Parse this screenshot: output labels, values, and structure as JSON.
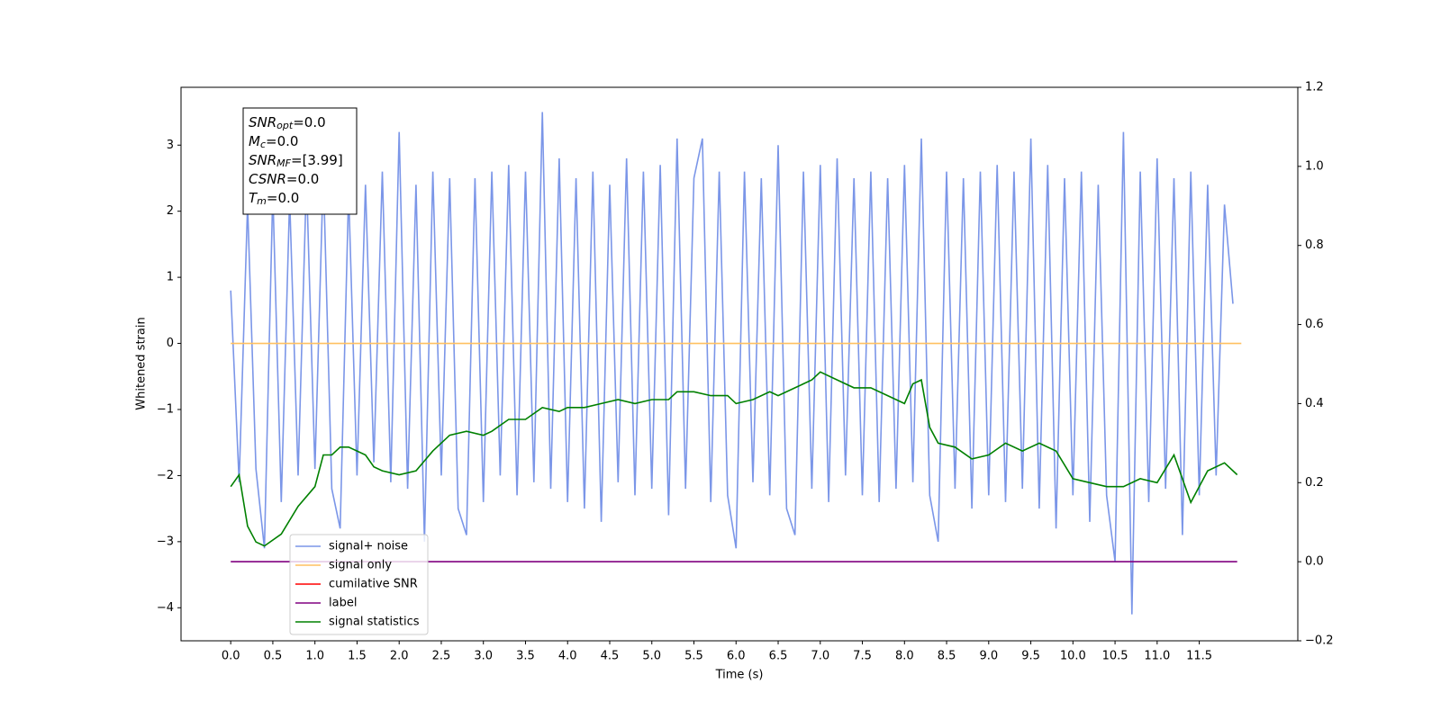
{
  "chart_data": {
    "type": "line",
    "xlabel": "Time (s)",
    "ylabel": "Whitened strain",
    "xlim": [
      -0.59,
      12.67
    ],
    "ylim": [
      -4.5,
      3.875
    ],
    "y2lim": [
      -0.2,
      1.2
    ],
    "xticks": [
      {
        "value": 0,
        "label": "0.0"
      },
      {
        "value": 0.5,
        "label": "0.5"
      },
      {
        "value": 1,
        "label": "1.0"
      },
      {
        "value": 1.5,
        "label": "1.5"
      },
      {
        "value": 2,
        "label": "2.0"
      },
      {
        "value": 2.5,
        "label": "2.5"
      },
      {
        "value": 3,
        "label": "3.0"
      },
      {
        "value": 3.5,
        "label": "3.5"
      },
      {
        "value": 4,
        "label": "4.0"
      },
      {
        "value": 4.5,
        "label": "4.5"
      },
      {
        "value": 5,
        "label": "5.0"
      },
      {
        "value": 5.5,
        "label": "5.5"
      },
      {
        "value": 6,
        "label": "6.0"
      },
      {
        "value": 6.5,
        "label": "6.5"
      },
      {
        "value": 7,
        "label": "7.0"
      },
      {
        "value": 7.5,
        "label": "7.5"
      },
      {
        "value": 8,
        "label": "8.0"
      },
      {
        "value": 8.5,
        "label": "8.5"
      },
      {
        "value": 9,
        "label": "9.0"
      },
      {
        "value": 9.5,
        "label": "9.5"
      },
      {
        "value": 10,
        "label": "10.0"
      },
      {
        "value": 10.5,
        "label": "10.5"
      },
      {
        "value": 11,
        "label": "11.0"
      },
      {
        "value": 11.5,
        "label": "11.5"
      }
    ],
    "yticks": [
      {
        "value": -4,
        "label": "−4"
      },
      {
        "value": -3,
        "label": "−3"
      },
      {
        "value": -2,
        "label": "−2"
      },
      {
        "value": -1,
        "label": "−1"
      },
      0,
      1,
      2,
      3
    ],
    "y2ticks": [
      {
        "value": -0.2,
        "label": "−0.2"
      },
      {
        "value": 0,
        "label": "0.0"
      },
      {
        "value": 0.2,
        "label": "0.2"
      },
      {
        "value": 0.4,
        "label": "0.4"
      },
      {
        "value": 0.6,
        "label": "0.6"
      },
      {
        "value": 0.8,
        "label": "0.8"
      },
      {
        "value": 1,
        "label": "1.0"
      },
      {
        "value": 1.2,
        "label": "1.2"
      }
    ],
    "grid": false,
    "legend": "lower left",
    "annotation": {
      "lines": [
        {
          "name": "SNR",
          "sub": "opt",
          "rest": "=0.0"
        },
        {
          "name": "M",
          "sub": "c",
          "rest": "=0.0"
        },
        {
          "name": "SNR",
          "sub": "MF",
          "rest": "=[3.99]"
        },
        {
          "name": "CSNR",
          "rest": "=0.0"
        },
        {
          "name": "T",
          "sub": "m",
          "rest": "=0.0"
        }
      ]
    },
    "series": [
      {
        "name": "signal+ noise",
        "color": "#7b96e8",
        "axis": "y",
        "x": [
          0,
          0.1,
          0.2,
          0.3,
          0.4,
          0.5,
          0.6,
          0.7,
          0.8,
          0.9,
          1,
          1.1,
          1.2,
          1.3,
          1.4,
          1.5,
          1.6,
          1.7,
          1.8,
          1.9,
          2,
          2.1,
          2.2,
          2.3,
          2.4,
          2.5,
          2.6,
          2.7,
          2.8,
          2.9,
          3,
          3.1,
          3.2,
          3.3,
          3.4,
          3.5,
          3.6,
          3.7,
          3.8,
          3.9,
          4,
          4.1,
          4.2,
          4.3,
          4.4,
          4.5,
          4.6,
          4.7,
          4.8,
          4.9,
          5,
          5.1,
          5.2,
          5.3,
          5.4,
          5.5,
          5.6,
          5.7,
          5.8,
          5.9,
          6,
          6.1,
          6.2,
          6.3,
          6.4,
          6.5,
          6.6,
          6.7,
          6.8,
          6.9,
          7,
          7.1,
          7.2,
          7.3,
          7.4,
          7.5,
          7.6,
          7.7,
          7.8,
          7.9,
          8,
          8.1,
          8.2,
          8.3,
          8.4,
          8.5,
          8.6,
          8.7,
          8.8,
          8.9,
          9,
          9.1,
          9.2,
          9.3,
          9.4,
          9.5,
          9.6,
          9.7,
          9.8,
          9.9,
          10,
          10.1,
          10.2,
          10.3,
          10.4,
          10.5,
          10.6,
          10.7,
          10.8,
          10.9,
          11,
          11.1,
          11.2,
          11.3,
          11.4,
          11.5,
          11.6,
          11.7,
          11.8,
          11.9
        ],
        "values": [
          0.8,
          -2.1,
          2.1,
          -1.9,
          -3.1,
          2.3,
          -2.4,
          2.2,
          -2.0,
          2.5,
          -1.9,
          2.6,
          -2.2,
          -2.8,
          2.3,
          -2.0,
          2.4,
          -1.8,
          2.6,
          -2.1,
          3.2,
          -2.2,
          2.4,
          -3.0,
          2.6,
          -2.0,
          2.5,
          -2.5,
          -2.9,
          2.5,
          -2.4,
          2.6,
          -2.0,
          2.7,
          -2.3,
          2.6,
          -2.1,
          3.5,
          -2.2,
          2.8,
          -2.4,
          2.5,
          -2.5,
          2.6,
          -2.7,
          2.4,
          -2.1,
          2.8,
          -2.3,
          2.6,
          -2.2,
          2.7,
          -2.6,
          3.1,
          -2.2,
          2.5,
          3.1,
          -2.4,
          2.6,
          -2.3,
          -3.1,
          2.6,
          -2.1,
          2.5,
          -2.3,
          3.0,
          -2.5,
          -2.9,
          2.6,
          -2.2,
          2.7,
          -2.4,
          2.8,
          -2.0,
          2.5,
          -2.3,
          2.6,
          -2.4,
          2.5,
          -2.2,
          2.7,
          -2.1,
          3.1,
          -2.3,
          -3.0,
          2.6,
          -2.2,
          2.5,
          -2.5,
          2.6,
          -2.3,
          2.7,
          -2.4,
          2.6,
          -2.2,
          3.1,
          -2.5,
          2.7,
          -2.8,
          2.5,
          -2.3,
          2.6,
          -2.7,
          2.4,
          -2.3,
          -3.3,
          3.2,
          -4.1,
          2.6,
          -2.4,
          2.8,
          -2.2,
          2.5,
          -2.9,
          2.6,
          -2.3,
          2.4,
          -2.0,
          2.1,
          0.6
        ]
      },
      {
        "name": "signal only",
        "color": "#ffc060",
        "axis": "y",
        "x": [
          0,
          12
        ],
        "values": [
          0,
          0
        ]
      },
      {
        "name": "cumilative SNR",
        "color": "#ff0000",
        "axis": "y",
        "x": [],
        "values": []
      },
      {
        "name": "label",
        "color": "#800080",
        "axis": "y2",
        "x": [
          0,
          11.95
        ],
        "values": [
          0,
          0
        ]
      },
      {
        "name": "signal statistics",
        "color": "#008000",
        "axis": "y2",
        "x": [
          0,
          0.1,
          0.2,
          0.3,
          0.4,
          0.6,
          0.8,
          1,
          1.1,
          1.2,
          1.3,
          1.4,
          1.6,
          1.7,
          1.8,
          2,
          2.2,
          2.4,
          2.6,
          2.8,
          3,
          3.1,
          3.3,
          3.5,
          3.7,
          3.9,
          4,
          4.2,
          4.4,
          4.6,
          4.8,
          5,
          5.2,
          5.3,
          5.5,
          5.7,
          5.9,
          6,
          6.2,
          6.4,
          6.5,
          6.7,
          6.9,
          7,
          7.2,
          7.4,
          7.6,
          7.8,
          8,
          8.1,
          8.2,
          8.3,
          8.4,
          8.6,
          8.8,
          9,
          9.2,
          9.4,
          9.6,
          9.8,
          10,
          10.2,
          10.4,
          10.6,
          10.8,
          11,
          11.2,
          11.4,
          11.6,
          11.8,
          11.95
        ],
        "values": [
          0.19,
          0.22,
          0.09,
          0.05,
          0.04,
          0.07,
          0.14,
          0.19,
          0.27,
          0.27,
          0.29,
          0.29,
          0.27,
          0.24,
          0.23,
          0.22,
          0.23,
          0.28,
          0.32,
          0.33,
          0.32,
          0.33,
          0.36,
          0.36,
          0.39,
          0.38,
          0.39,
          0.39,
          0.4,
          0.41,
          0.4,
          0.41,
          0.41,
          0.43,
          0.43,
          0.42,
          0.42,
          0.4,
          0.41,
          0.43,
          0.42,
          0.44,
          0.46,
          0.48,
          0.46,
          0.44,
          0.44,
          0.42,
          0.4,
          0.45,
          0.46,
          0.34,
          0.3,
          0.29,
          0.26,
          0.27,
          0.3,
          0.28,
          0.3,
          0.28,
          0.21,
          0.2,
          0.19,
          0.19,
          0.21,
          0.2,
          0.27,
          0.15,
          0.23,
          0.25,
          0.22
        ]
      }
    ]
  }
}
